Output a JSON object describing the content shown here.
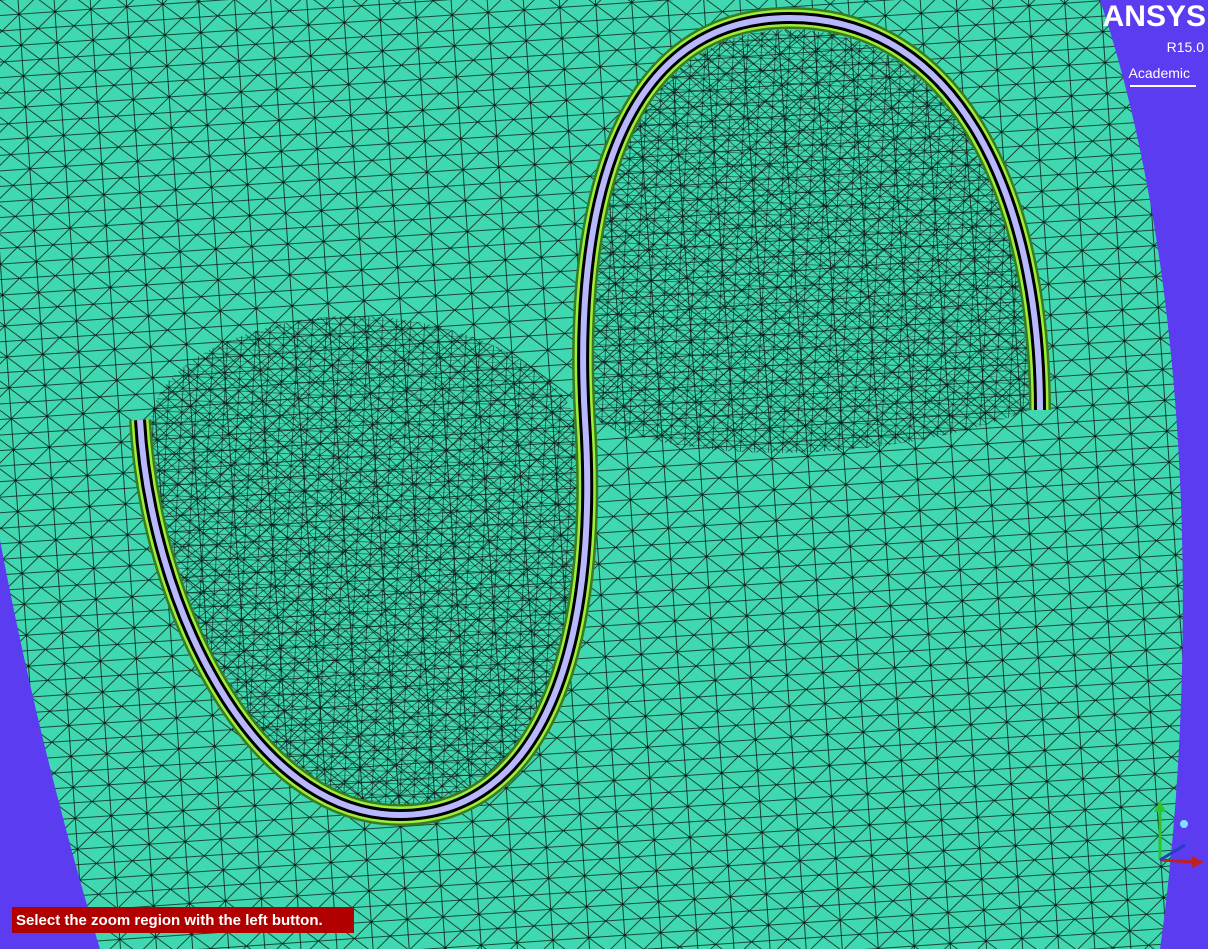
{
  "logo": {
    "brand": "ANSYS",
    "version": "R15.0",
    "edition": "Academic"
  },
  "status_message": "Select the zoom region with the left button."
}
